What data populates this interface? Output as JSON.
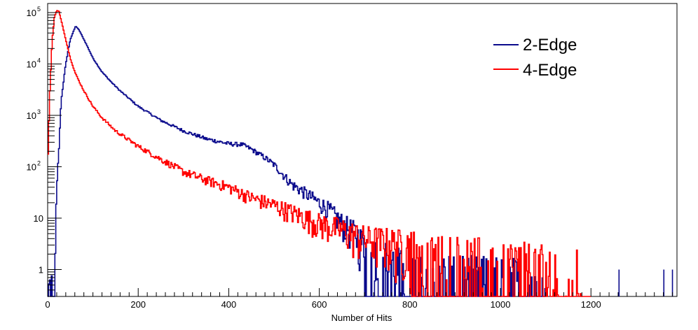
{
  "chart_data": {
    "type": "line",
    "title": "",
    "xlabel": "Number of Hits",
    "ylabel": "",
    "x_scale": "linear",
    "y_scale": "log",
    "xlim": [
      0,
      1390
    ],
    "ylim": [
      0.3,
      150000
    ],
    "grid": false,
    "legend_position": "top-right",
    "x_ticks": [
      0,
      200,
      400,
      600,
      800,
      1000,
      1200
    ],
    "x_tick_labels": [
      "0",
      "200",
      "400",
      "600",
      "800",
      "1000",
      "1200"
    ],
    "y_ticks": [
      1,
      10,
      100,
      1000,
      10000,
      100000
    ],
    "y_tick_labels": [
      {
        "base": "",
        "exp": "",
        "text": "1"
      },
      {
        "base": "",
        "exp": "",
        "text": "10"
      },
      {
        "base": "10",
        "exp": "2",
        "text": ""
      },
      {
        "base": "10",
        "exp": "3",
        "text": ""
      },
      {
        "base": "10",
        "exp": "4",
        "text": ""
      },
      {
        "base": "10",
        "exp": "5",
        "text": ""
      }
    ],
    "series": [
      {
        "name": "2-Edge",
        "color": "#0a0a8c",
        "points": [
          [
            0,
            0.3
          ],
          [
            10,
            0.4
          ],
          [
            15,
            1
          ],
          [
            20,
            30
          ],
          [
            30,
            2000
          ],
          [
            40,
            10000
          ],
          [
            50,
            30000
          ],
          [
            60,
            50000
          ],
          [
            62,
            55000
          ],
          [
            70,
            45000
          ],
          [
            80,
            30000
          ],
          [
            90,
            20000
          ],
          [
            100,
            13000
          ],
          [
            120,
            7000
          ],
          [
            140,
            4500
          ],
          [
            160,
            3000
          ],
          [
            200,
            1500
          ],
          [
            250,
            800
          ],
          [
            300,
            500
          ],
          [
            350,
            350
          ],
          [
            400,
            280
          ],
          [
            430,
            270
          ],
          [
            450,
            220
          ],
          [
            480,
            150
          ],
          [
            500,
            110
          ],
          [
            520,
            70
          ],
          [
            540,
            45
          ],
          [
            560,
            35
          ],
          [
            600,
            20
          ],
          [
            620,
            15
          ],
          [
            650,
            8
          ],
          [
            680,
            5
          ],
          [
            700,
            3
          ],
          [
            720,
            2
          ],
          [
            750,
            1.5
          ],
          [
            780,
            1
          ],
          [
            800,
            1
          ],
          [
            830,
            0.8
          ],
          [
            860,
            0.8
          ],
          [
            900,
            0.7
          ],
          [
            950,
            0.6
          ],
          [
            1000,
            0.6
          ],
          [
            1050,
            0.5
          ],
          [
            1100,
            0.5
          ]
        ],
        "isolated_bins": [
          1262,
          1361,
          1380
        ]
      },
      {
        "name": "4-Edge",
        "color": "#ff0000",
        "points": [
          [
            0,
            100
          ],
          [
            5,
            3000
          ],
          [
            10,
            30000
          ],
          [
            15,
            80000
          ],
          [
            20,
            110000
          ],
          [
            25,
            105000
          ],
          [
            30,
            70000
          ],
          [
            40,
            30000
          ],
          [
            50,
            13000
          ],
          [
            60,
            7000
          ],
          [
            70,
            4500
          ],
          [
            80,
            3000
          ],
          [
            100,
            1500
          ],
          [
            120,
            900
          ],
          [
            150,
            500
          ],
          [
            200,
            250
          ],
          [
            250,
            140
          ],
          [
            300,
            80
          ],
          [
            350,
            55
          ],
          [
            400,
            40
          ],
          [
            450,
            25
          ],
          [
            500,
            18
          ],
          [
            550,
            12
          ],
          [
            600,
            8
          ],
          [
            650,
            6
          ],
          [
            700,
            4
          ],
          [
            750,
            3.5
          ],
          [
            800,
            3
          ],
          [
            850,
            2.5
          ],
          [
            900,
            2.2
          ],
          [
            950,
            2
          ],
          [
            1000,
            1.8
          ],
          [
            1050,
            1.5
          ],
          [
            1100,
            1.2
          ],
          [
            1150,
            1
          ],
          [
            1200,
            0.8
          ]
        ]
      }
    ]
  }
}
